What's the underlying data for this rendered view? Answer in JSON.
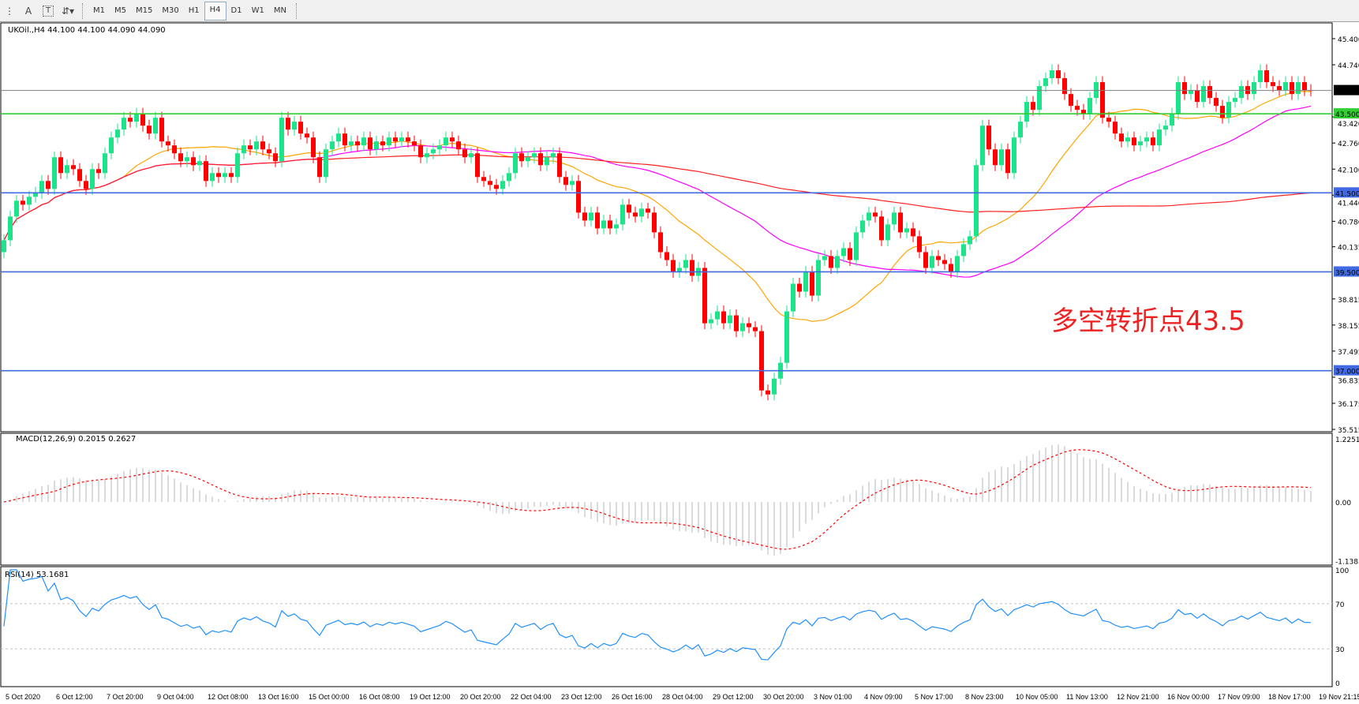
{
  "toolbar": {
    "icons": [
      "line-studies-icon",
      "text-a-icon",
      "text-label-icon",
      "arrows-icon"
    ],
    "timeframes": [
      "M1",
      "M5",
      "M15",
      "M30",
      "H1",
      "H4",
      "D1",
      "W1",
      "MN"
    ],
    "active_timeframe": "H4"
  },
  "chart_data": {
    "type": "candlestick",
    "title": "UKOil.,H4  44.100 44.100 44.090 44.090",
    "symbol": "UKOil.",
    "timeframe": "H4",
    "ylim": [
      35.515,
      45.4
    ],
    "price_ticks": [
      "45.400",
      "44.740",
      "43.420",
      "42.760",
      "42.100",
      "41.440",
      "40.780",
      "40.135",
      "38.815",
      "38.155",
      "37.495",
      "36.835",
      "36.175",
      "35.515"
    ],
    "x_tick_labels": [
      "5 Oct 2020",
      "6 Oct 12:00",
      "7 Oct 20:00",
      "9 Oct 04:00",
      "12 Oct 08:00",
      "13 Oct 16:00",
      "15 Oct 00:00",
      "16 Oct 08:00",
      "19 Oct 12:00",
      "20 Oct 20:00",
      "22 Oct 04:00",
      "23 Oct 12:00",
      "26 Oct 16:00",
      "28 Oct 04:00",
      "29 Oct 12:00",
      "30 Oct 20:00",
      "3 Nov 01:00",
      "4 Nov 09:00",
      "5 Nov 17:00",
      "8 Nov 23:00",
      "10 Nov 05:00",
      "11 Nov 13:00",
      "12 Nov 21:00",
      "16 Nov 00:00",
      "17 Nov 09:00",
      "18 Nov 17:00",
      "19 Nov 21:15"
    ],
    "bars_per_label": 8,
    "closes": [
      40.3,
      40.9,
      41.3,
      41.2,
      41.4,
      41.5,
      41.8,
      41.6,
      42.4,
      42.0,
      42.2,
      42.1,
      41.8,
      41.6,
      42.1,
      42.0,
      42.5,
      42.9,
      43.1,
      43.4,
      43.3,
      43.5,
      43.2,
      43.0,
      43.4,
      42.8,
      42.7,
      42.5,
      42.3,
      42.4,
      42.2,
      42.3,
      41.8,
      42.0,
      41.9,
      42.0,
      41.9,
      42.5,
      42.7,
      42.6,
      42.8,
      42.6,
      42.5,
      42.3,
      43.4,
      43.1,
      43.3,
      43.0,
      42.9,
      42.4,
      41.9,
      42.6,
      42.8,
      43.0,
      42.7,
      42.8,
      42.7,
      42.9,
      42.6,
      42.8,
      42.7,
      42.9,
      42.8,
      42.9,
      42.8,
      42.7,
      42.4,
      42.5,
      42.6,
      42.7,
      42.9,
      42.8,
      42.6,
      42.4,
      42.5,
      41.9,
      41.8,
      41.7,
      41.6,
      41.8,
      42.0,
      42.5,
      42.3,
      42.4,
      42.5,
      42.2,
      42.4,
      42.5,
      41.9,
      41.7,
      41.8,
      41.0,
      40.8,
      41.0,
      40.6,
      40.8,
      40.6,
      40.7,
      41.2,
      41.0,
      40.9,
      41.1,
      41.0,
      40.5,
      40.0,
      39.8,
      39.5,
      39.6,
      39.8,
      39.4,
      39.6,
      38.2,
      38.3,
      38.5,
      38.2,
      38.4,
      38.0,
      38.2,
      38.1,
      38.0,
      36.5,
      36.4,
      36.8,
      37.2,
      38.5,
      39.2,
      39.0,
      39.5,
      38.9,
      39.8,
      39.9,
      39.6,
      39.9,
      40.1,
      39.8,
      40.5,
      40.8,
      41.0,
      40.9,
      40.3,
      40.7,
      41.0,
      40.5,
      40.6,
      40.4,
      40.0,
      39.6,
      39.9,
      39.8,
      39.7,
      39.5,
      39.9,
      40.2,
      40.4,
      42.2,
      43.2,
      42.6,
      42.2,
      42.6,
      42.0,
      42.9,
      43.3,
      43.8,
      43.6,
      44.2,
      44.4,
      44.6,
      44.4,
      44.0,
      43.7,
      43.6,
      43.5,
      43.9,
      44.3,
      43.4,
      43.3,
      43.0,
      42.8,
      42.9,
      42.7,
      42.8,
      42.9,
      42.7,
      43.1,
      43.2,
      43.5,
      44.3,
      44.0,
      44.1,
      43.8,
      44.2,
      43.9,
      43.7,
      43.4,
      43.8,
      43.9,
      44.2,
      44.0,
      44.3,
      44.6,
      44.3,
      44.2,
      44.1,
      44.3,
      44.0,
      44.3,
      44.1,
      44.09
    ],
    "colors": {
      "bull": "#1de38a",
      "bear": "#ff0000",
      "ma_fast": "#ffa500",
      "ma_mid": "#ff00ff",
      "ma_slow": "#ff2020"
    },
    "horizontal_lines": [
      {
        "label": "44.090",
        "price": 44.09,
        "color": "#808080",
        "tag_bg": "#000000"
      },
      {
        "label": "43.500",
        "price": 43.5,
        "color": "#32cd32",
        "tag_bg": "#32cd32"
      },
      {
        "label": "41.500",
        "price": 41.5,
        "color": "#4169e1",
        "tag_bg": "#4169e1"
      },
      {
        "label": "39.500",
        "price": 39.5,
        "color": "#4169e1",
        "tag_bg": "#4169e1"
      },
      {
        "label": "37.000",
        "price": 37.0,
        "color": "#4169e1",
        "tag_bg": "#4169e1"
      }
    ],
    "annotation": {
      "text": "多空转折点43.5",
      "color": "#ee2222"
    },
    "macd": {
      "label": "MACD(12,26,9) 0.2015 0.2627",
      "ticks": [
        "1.2251",
        "0.00",
        "-1.1383"
      ],
      "ylim": [
        -1.1383,
        1.2251
      ],
      "histogram_color": "#c0c0c0",
      "signal_color": "#ff0000"
    },
    "rsi": {
      "label": "RSI(14) 53.1681",
      "ticks": [
        "100",
        "70",
        "30",
        "0"
      ],
      "levels": [
        70,
        30
      ],
      "ylim": [
        0,
        100
      ],
      "color": "#1e90ff"
    }
  }
}
